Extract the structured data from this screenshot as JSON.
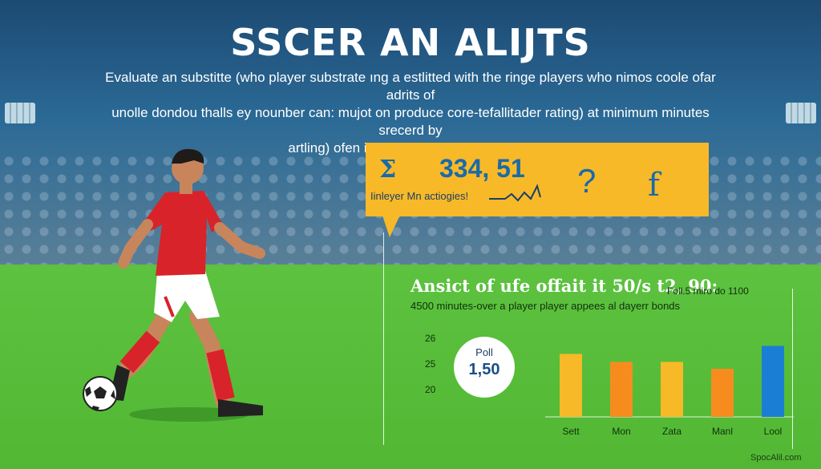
{
  "header": {
    "title": "SSCER AN ALIJTS",
    "intro_line1": "Evaluate an substitte (who player substrate ıng a estlitted with the ringe players who nimos coole ofar adrits of",
    "intro_line2": "unolle dondou thalls ey nounber can: mujot on produce core-tefallitader rating) at minimum minutes srecerd by",
    "intro_line3": "artling) ofen iolered a general leadbards."
  },
  "callout": {
    "sigma": "Σ",
    "value": "334, 51",
    "caption": "Iinleyer Mn actiogies!",
    "question_mark": "?",
    "function_mark": "f"
  },
  "panel": {
    "subhead": "Ansict of ufe offait it 50/s t2, 90:",
    "subhead_note": "Foll.5 miro do 1100",
    "minutes_note": "4500 minutes-over a player player appees al dayerr bonds",
    "poll_label": "Poll",
    "poll_value": "1,50"
  },
  "chart_data": {
    "type": "bar",
    "categories": [
      "Sett",
      "Mon",
      "Zata",
      "Manl",
      "Lool"
    ],
    "values": [
      25.5,
      24.8,
      24.8,
      24.2,
      26.2
    ],
    "colors": [
      "#f7b928",
      "#f78c1e",
      "#f7b928",
      "#f78c1e",
      "#1a7fd4"
    ],
    "yticks": [
      26,
      25,
      20
    ],
    "title": "",
    "xlabel": "",
    "ylabel": ""
  },
  "footer": {
    "watermark": "SpocAlil.com"
  }
}
